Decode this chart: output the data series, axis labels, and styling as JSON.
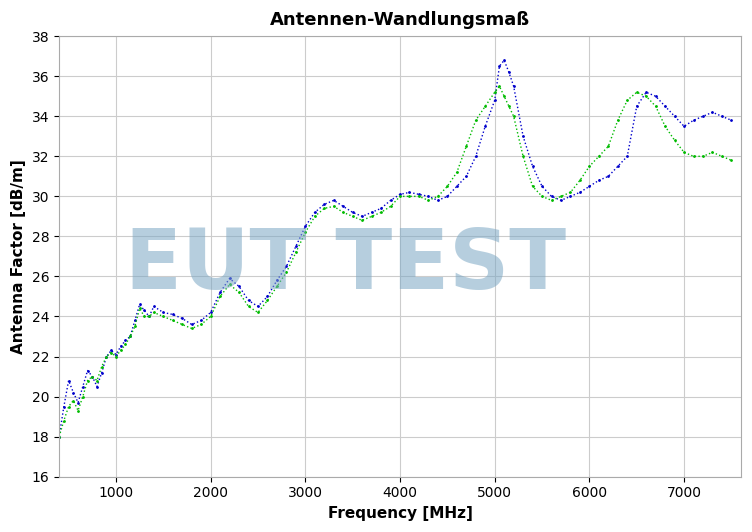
{
  "title": "Antennen-Wandlungsmaß",
  "xlabel": "Frequency [MHz]",
  "ylabel": "Antenna Factor [dB/m]",
  "xlim": [
    400,
    7600
  ],
  "ylim": [
    16,
    38
  ],
  "xticks": [
    1000,
    2000,
    3000,
    4000,
    5000,
    6000,
    7000
  ],
  "yticks": [
    16,
    18,
    20,
    22,
    24,
    26,
    28,
    30,
    32,
    34,
    36,
    38
  ],
  "grid_color": "#cccccc",
  "bg_color": "#ffffff",
  "line1_color": "#0000cc",
  "line2_color": "#00bb00",
  "watermark_text": "EUT TEST",
  "watermark_color": "#7ba7c4",
  "watermark_alpha": 0.55,
  "title_fontsize": 13,
  "axis_label_fontsize": 11,
  "tick_fontsize": 10,
  "freq": [
    400,
    450,
    500,
    550,
    600,
    650,
    700,
    750,
    800,
    850,
    900,
    950,
    1000,
    1050,
    1100,
    1150,
    1200,
    1250,
    1300,
    1350,
    1400,
    1500,
    1600,
    1700,
    1800,
    1900,
    2000,
    2100,
    2200,
    2300,
    2400,
    2500,
    2600,
    2700,
    2800,
    2900,
    3000,
    3100,
    3200,
    3300,
    3400,
    3500,
    3600,
    3700,
    3800,
    3900,
    4000,
    4100,
    4200,
    4300,
    4400,
    4500,
    4600,
    4700,
    4800,
    4900,
    5000,
    5050,
    5100,
    5150,
    5200,
    5300,
    5400,
    5500,
    5600,
    5700,
    5800,
    5900,
    6000,
    6100,
    6200,
    6300,
    6400,
    6500,
    6600,
    6700,
    6800,
    6900,
    7000,
    7100,
    7200,
    7300,
    7400,
    7500
  ],
  "vals_blue": [
    18.0,
    19.5,
    20.8,
    20.2,
    19.7,
    20.5,
    21.3,
    21.0,
    20.5,
    21.2,
    22.0,
    22.3,
    22.1,
    22.5,
    22.8,
    23.0,
    23.8,
    24.6,
    24.3,
    24.0,
    24.5,
    24.2,
    24.1,
    23.9,
    23.6,
    23.8,
    24.2,
    25.2,
    25.9,
    25.5,
    24.8,
    24.5,
    25.0,
    25.8,
    26.5,
    27.5,
    28.5,
    29.2,
    29.6,
    29.8,
    29.5,
    29.2,
    29.0,
    29.2,
    29.4,
    29.8,
    30.1,
    30.2,
    30.1,
    30.0,
    29.8,
    30.0,
    30.5,
    31.0,
    32.0,
    33.5,
    34.8,
    36.5,
    36.8,
    36.2,
    35.5,
    33.0,
    31.5,
    30.5,
    30.0,
    29.8,
    30.0,
    30.2,
    30.5,
    30.8,
    31.0,
    31.5,
    32.0,
    34.5,
    35.2,
    35.0,
    34.5,
    34.0,
    33.5,
    33.8,
    34.0,
    34.2,
    34.0,
    33.8
  ],
  "vals_green": [
    18.0,
    18.8,
    19.5,
    19.8,
    19.3,
    20.0,
    20.8,
    21.0,
    20.8,
    21.5,
    22.0,
    22.2,
    22.0,
    22.3,
    22.6,
    23.0,
    23.5,
    24.4,
    24.0,
    24.0,
    24.2,
    24.0,
    23.8,
    23.6,
    23.4,
    23.6,
    24.0,
    25.0,
    25.6,
    25.2,
    24.5,
    24.2,
    24.8,
    25.5,
    26.2,
    27.2,
    28.2,
    29.0,
    29.4,
    29.5,
    29.2,
    29.0,
    28.8,
    29.0,
    29.2,
    29.5,
    30.0,
    30.0,
    30.0,
    29.8,
    30.0,
    30.5,
    31.2,
    32.5,
    33.8,
    34.5,
    35.2,
    35.5,
    35.0,
    34.5,
    34.0,
    32.0,
    30.5,
    30.0,
    29.8,
    30.0,
    30.2,
    30.8,
    31.5,
    32.0,
    32.5,
    33.8,
    34.8,
    35.2,
    35.0,
    34.5,
    33.5,
    32.8,
    32.2,
    32.0,
    32.0,
    32.2,
    32.0,
    31.8
  ]
}
